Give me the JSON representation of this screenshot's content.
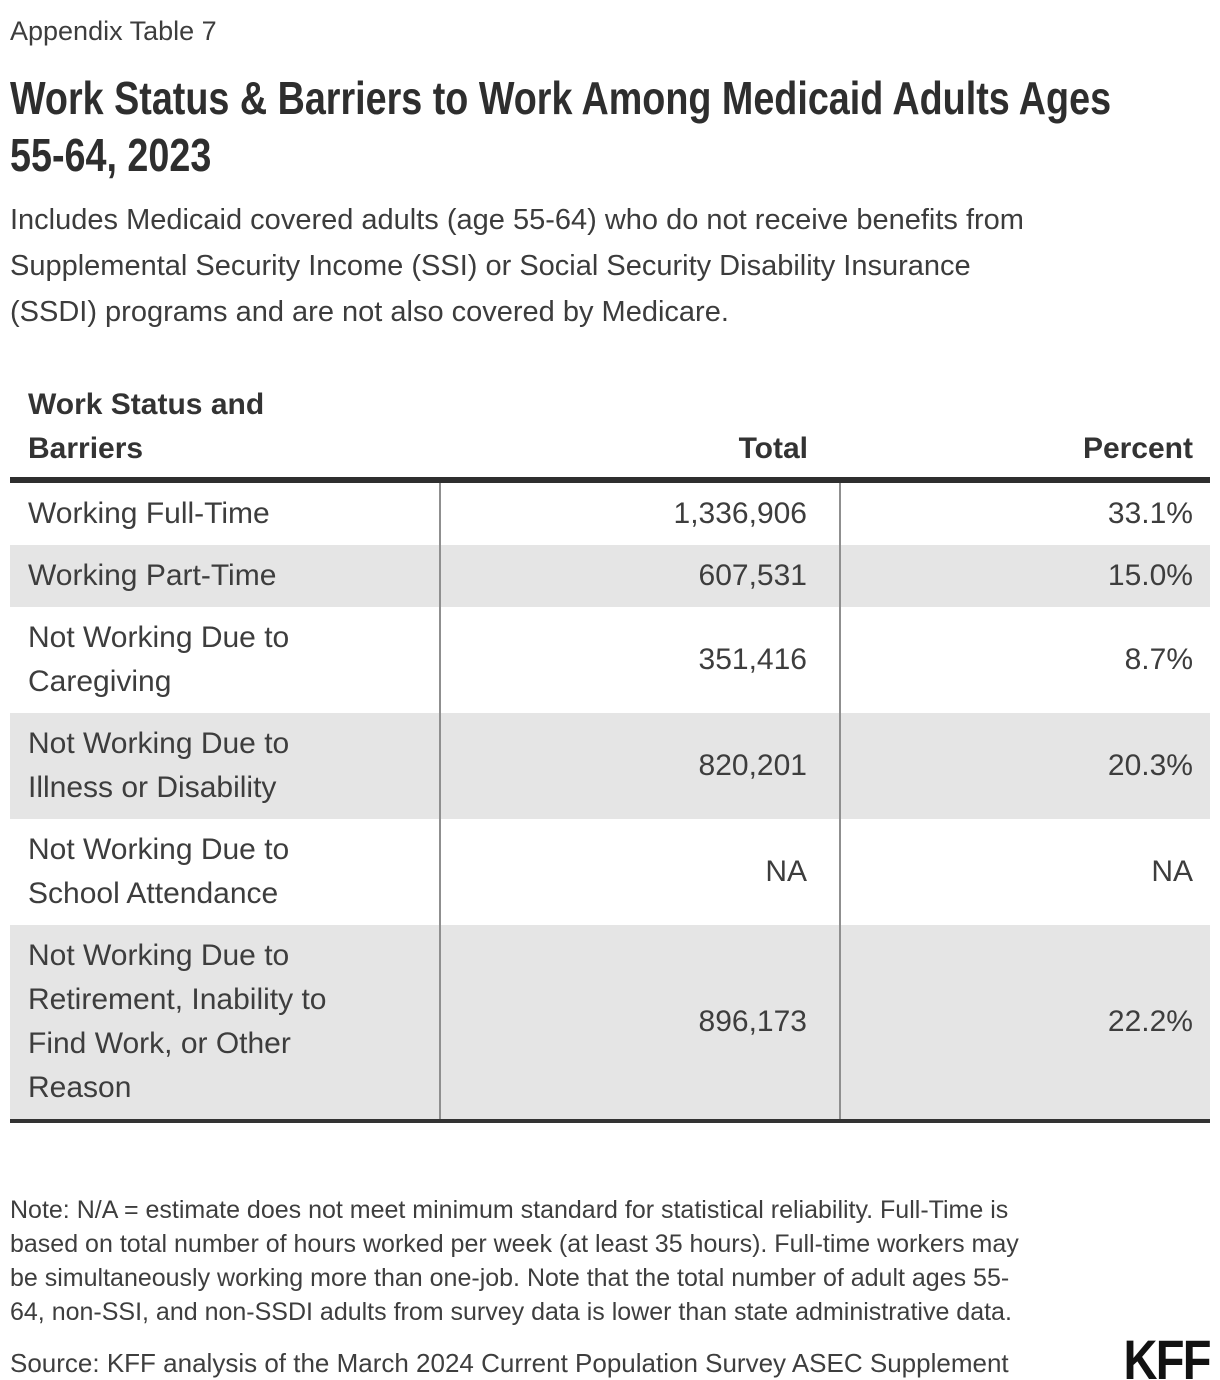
{
  "page": {
    "appendix_label": "Appendix Table 7",
    "title": "Work Status & Barriers to Work Among Medicaid Adults Ages\n55-64, 2023",
    "subtitle": "Includes Medicaid covered adults (age 55-64) who do not receive benefits from\nSupplemental Security Income (SSI) or Social Security Disability Insurance\n(SSDI) programs and are not also covered by Medicare."
  },
  "table": {
    "columns": [
      {
        "label": "Work Status and\nBarriers"
      },
      {
        "label": "Total"
      },
      {
        "label": "Percent"
      }
    ],
    "rows": [
      {
        "label": "Working Full-Time",
        "total": "1,336,906",
        "percent": "33.1%"
      },
      {
        "label": "Working Part-Time",
        "total": "607,531",
        "percent": "15.0%"
      },
      {
        "label": "Not Working Due to\nCaregiving",
        "total": "351,416",
        "percent": "8.7%"
      },
      {
        "label": "Not Working Due to\nIllness or Disability",
        "total": "820,201",
        "percent": "20.3%"
      },
      {
        "label": "Not Working Due to\nSchool Attendance",
        "total": "NA",
        "percent": "NA"
      },
      {
        "label": "Not Working Due to\nRetirement, Inability to\nFind Work, or Other\nReason",
        "total": "896,173",
        "percent": "22.2%"
      }
    ]
  },
  "footer": {
    "note": "Note: N/A = estimate does not meet minimum standard for statistical reliability. Full-Time is\nbased on total number of hours worked per week (at least 35 hours). Full-time workers may\nbe simultaneously working more than one-job. Note that the total number of adult ages 55-\n64, non-SSI, and non-SSDI adults from survey data is lower than state administrative data.",
    "source": "Source: KFF analysis of the March 2024 Current Population Survey ASEC Supplement",
    "logo_text": "KFF"
  },
  "colors": {
    "title_text": "#2e2e2e",
    "body_text": "#3d3d3d",
    "zebra_row_bg": "#e5e5e5",
    "header_rule": "#2e2e2e",
    "bottom_rule": "#333333",
    "column_divider": "#8f8f8f",
    "logo": "#121212"
  },
  "chart_data": {
    "type": "table",
    "title": "Work Status & Barriers to Work Among Medicaid Adults Ages 55-64, 2023",
    "subtitle": "Includes Medicaid covered adults (age 55-64) who do not receive benefits from Supplemental Security Income (SSI) or Social Security Disability Insurance (SSDI) programs and are not also covered by Medicare.",
    "columns": [
      "Work Status and Barriers",
      "Total",
      "Percent"
    ],
    "rows": [
      [
        "Working Full-Time",
        "1,336,906",
        "33.1%"
      ],
      [
        "Working Part-Time",
        "607,531",
        "15.0%"
      ],
      [
        "Not Working Due to Caregiving",
        "351,416",
        "8.7%"
      ],
      [
        "Not Working Due to Illness or Disability",
        "820,201",
        "20.3%"
      ],
      [
        "Not Working Due to School Attendance",
        "NA",
        "NA"
      ],
      [
        "Not Working Due to Retirement, Inability to Find Work, or Other Reason",
        "896,173",
        "22.2%"
      ]
    ],
    "note": "Note: N/A = estimate does not meet minimum standard for statistical reliability. Full-Time is based on total number of hours worked per week (at least 35 hours). Full-time workers may be simultaneously working more than one-job. Note that the total number of adult ages 55-64, non-SSI, and non-SSDI adults from survey data is lower than state administrative data.",
    "source": "Source: KFF analysis of the March 2024 Current Population Survey ASEC Supplement"
  }
}
